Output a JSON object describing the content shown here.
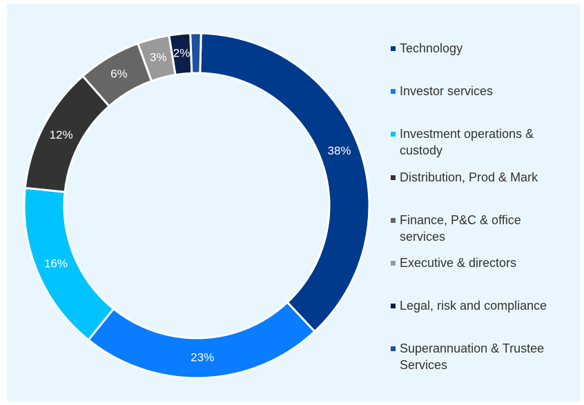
{
  "chart_data": {
    "type": "donut",
    "categories": [
      "Technology",
      "Investor services",
      "Investment operations & custody",
      "Distribution, Prod & Mark",
      "Finance, P&C & office services",
      "Executive & directors",
      "Legal, risk and compliance",
      "Superannuation & Trustee Services"
    ],
    "values": [
      38,
      23,
      16,
      12,
      6,
      3,
      2,
      1
    ],
    "value_labels": [
      "38%",
      "23%",
      "16%",
      "12%",
      "6%",
      "3%",
      "2%",
      null
    ],
    "colors": [
      "#003a8c",
      "#0a7cff",
      "#00c3ff",
      "#333333",
      "#666666",
      "#9a9a9a",
      "#0b1f4a",
      "#1f4f9e"
    ]
  }
}
